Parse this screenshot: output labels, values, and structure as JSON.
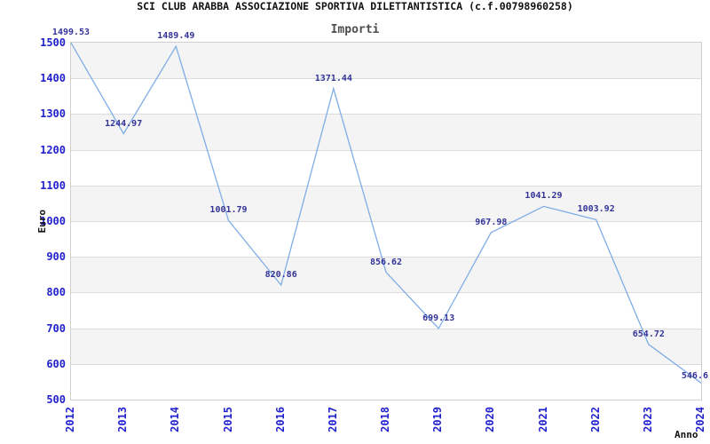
{
  "chart_data": {
    "type": "line",
    "title": "SCI CLUB ARABBA ASSOCIAZIONE SPORTIVA DILETTANTISTICA (c.f.00798960258)",
    "subtitle": "Importi",
    "xlabel": "Anno",
    "ylabel": "Euro",
    "categories": [
      "2012",
      "2013",
      "2014",
      "2015",
      "2016",
      "2017",
      "2018",
      "2019",
      "2020",
      "2021",
      "2022",
      "2023",
      "2024"
    ],
    "values": [
      1499.53,
      1244.97,
      1489.49,
      1001.79,
      820.86,
      1371.44,
      856.62,
      699.13,
      967.98,
      1041.29,
      1003.92,
      654.72,
      546.6
    ],
    "value_labels": [
      "1499.53",
      "1244.97",
      "1489.49",
      "1001.79",
      "820.86",
      "1371.44",
      "856.62",
      "699.13",
      "967.98",
      "1041.29",
      "1003.92",
      "654.72",
      "546.6"
    ],
    "ylim": [
      500,
      1500
    ],
    "ytick_step": 100,
    "yticks": [
      "1500",
      "1400",
      "1300",
      "1200",
      "1100",
      "1000",
      "900",
      "800",
      "700",
      "600",
      "500"
    ],
    "legend": "none",
    "grid": "alternating horizontal bands every 100 units, gray starting at top band 1500-1400",
    "colors": {
      "line": "#7fade6",
      "tick_label": "#2222cc",
      "value_label": "#333399",
      "band_gray": "#f4f4f4",
      "band_white": "#ffffff",
      "plot_border": "#cfcfcf",
      "grid_line": "#dcdcdc",
      "title": "#111111",
      "subtitle": "#4d4d4d",
      "axis_title": "#111111"
    }
  }
}
